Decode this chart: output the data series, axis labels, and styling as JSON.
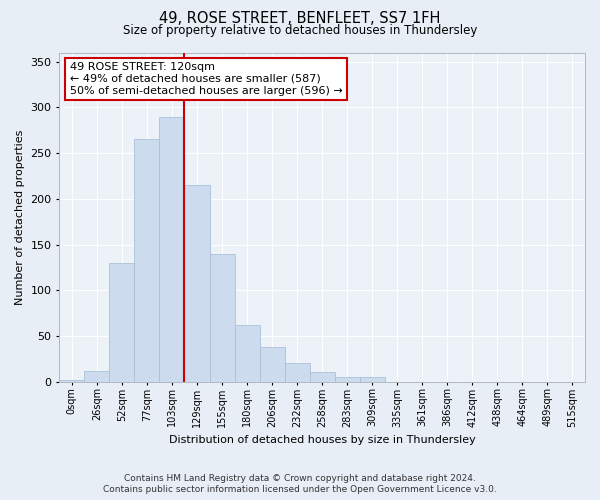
{
  "title1": "49, ROSE STREET, BENFLEET, SS7 1FH",
  "title2": "Size of property relative to detached houses in Thundersley",
  "xlabel": "Distribution of detached houses by size in Thundersley",
  "ylabel": "Number of detached properties",
  "bin_labels": [
    "0sqm",
    "26sqm",
    "52sqm",
    "77sqm",
    "103sqm",
    "129sqm",
    "155sqm",
    "180sqm",
    "206sqm",
    "232sqm",
    "258sqm",
    "283sqm",
    "309sqm",
    "335sqm",
    "361sqm",
    "386sqm",
    "412sqm",
    "438sqm",
    "464sqm",
    "489sqm",
    "515sqm"
  ],
  "bar_values": [
    2,
    12,
    130,
    265,
    290,
    215,
    140,
    62,
    38,
    20,
    11,
    5,
    5,
    0,
    0,
    0,
    0,
    0,
    0,
    0,
    0
  ],
  "bar_color": "#ccdcee",
  "bar_edge_color": "#aac0d8",
  "vline_color": "#cc0000",
  "annotation_text": "49 ROSE STREET: 120sqm\n← 49% of detached houses are smaller (587)\n50% of semi-detached houses are larger (596) →",
  "annotation_box_color": "#ffffff",
  "annotation_box_edge": "#cc0000",
  "ylim": [
    0,
    360
  ],
  "yticks": [
    0,
    50,
    100,
    150,
    200,
    250,
    300,
    350
  ],
  "footer1": "Contains HM Land Registry data © Crown copyright and database right 2024.",
  "footer2": "Contains public sector information licensed under the Open Government Licence v3.0.",
  "bg_color": "#e8eef5",
  "plot_bg_color": "#edf2f8"
}
